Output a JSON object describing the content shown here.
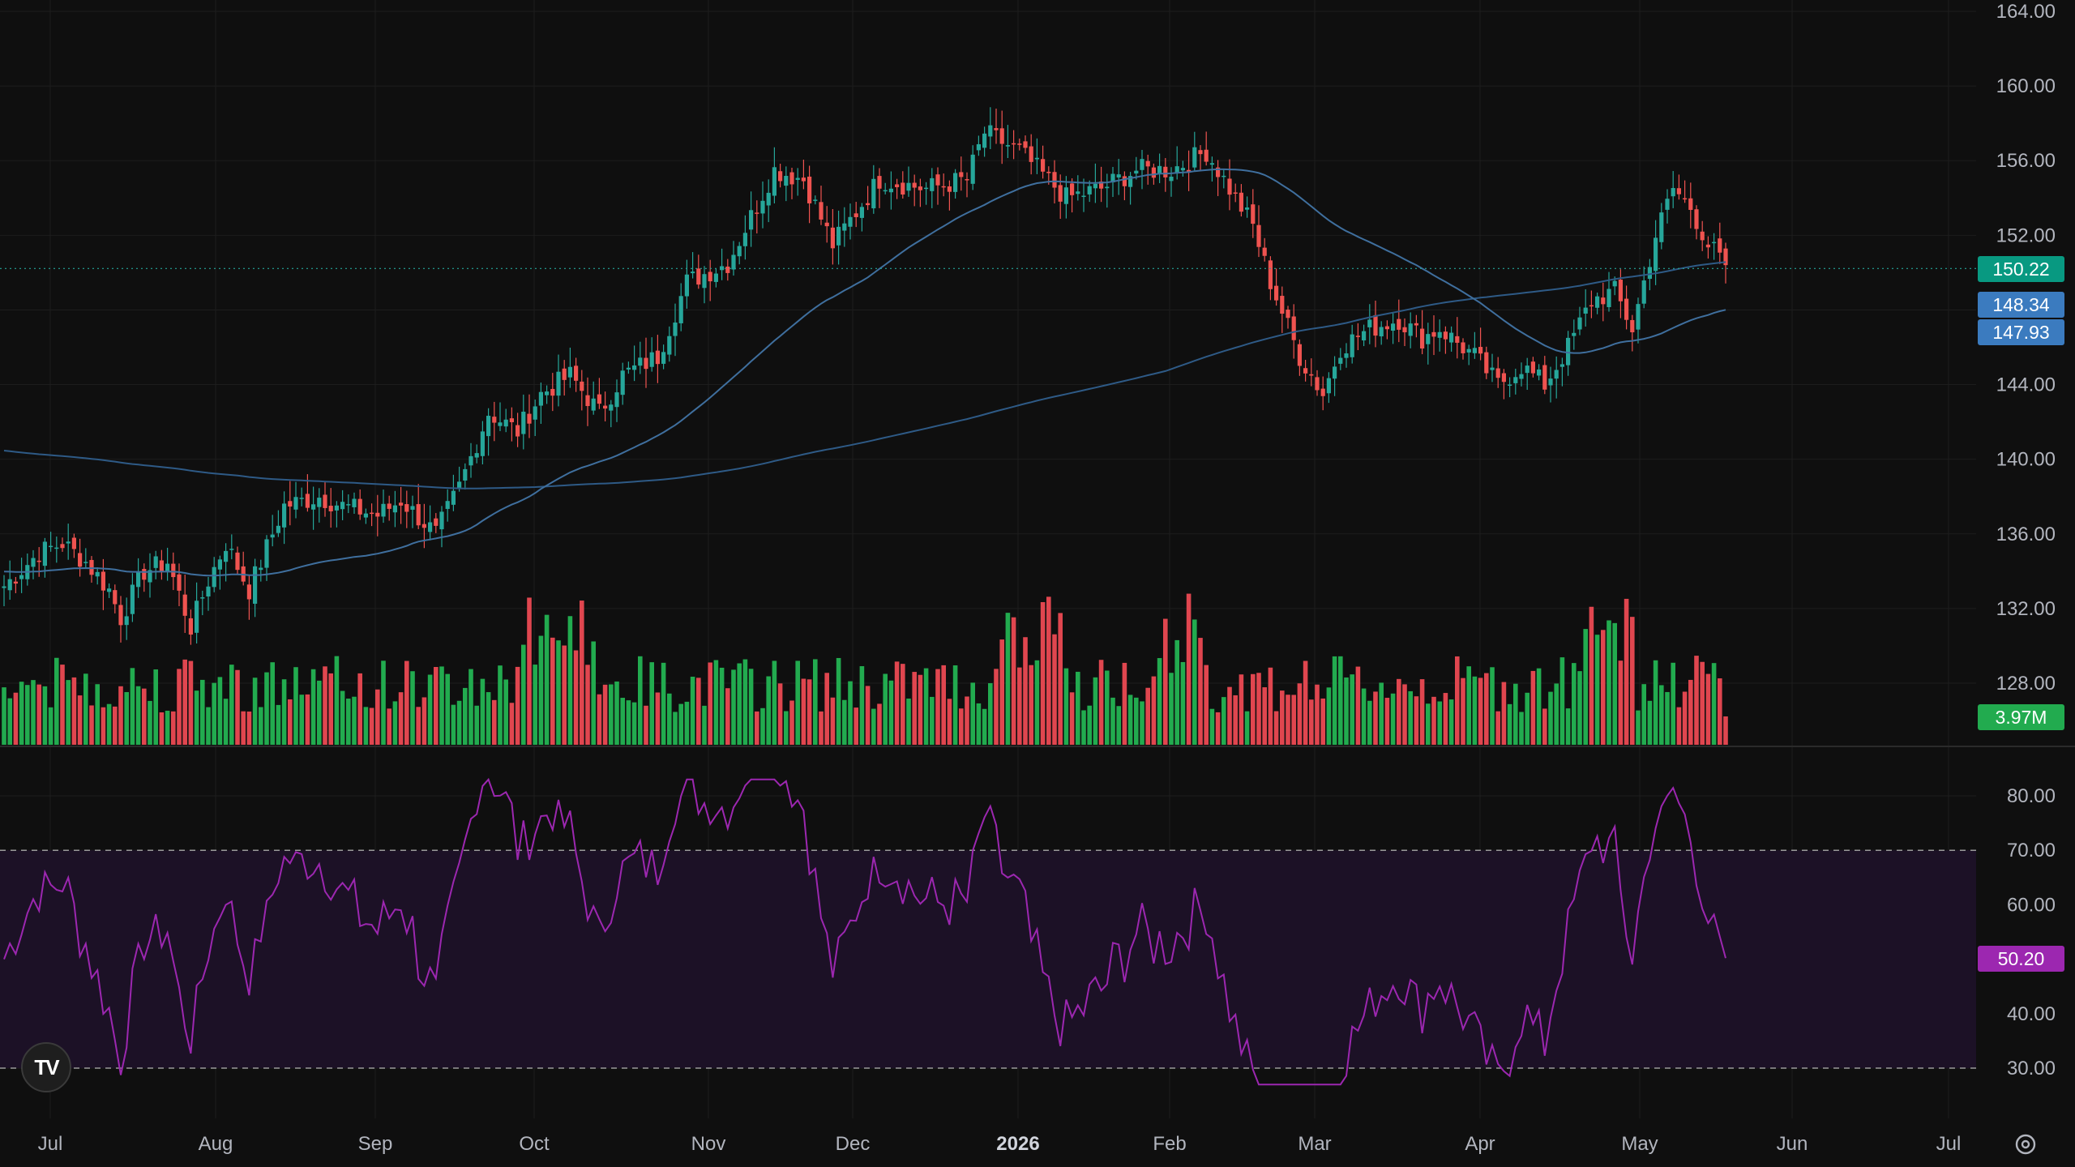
{
  "chart_data": [
    {
      "type": "candlestick",
      "panel": "price",
      "y_ticks": [
        "164.00",
        "160.00",
        "156.00",
        "152.00",
        "148.00",
        "144.00",
        "140.00",
        "136.00",
        "132.00",
        "128.00"
      ],
      "ylim": [
        125.5,
        164
      ],
      "x_ticks": [
        "Jul",
        "Aug",
        "Sep",
        "Oct",
        "Nov",
        "Dec",
        "2026",
        "Feb",
        "Mar",
        "Apr",
        "May",
        "Jun",
        "Jul"
      ],
      "bars_count": 239,
      "last_price": "150.22",
      "ma_values": [
        "148.34",
        "147.93"
      ],
      "anchors": [
        [
          0,
          133.2
        ],
        [
          6,
          135.0
        ],
        [
          10,
          135.5
        ],
        [
          14,
          134.5
        ],
        [
          18,
          133.0
        ],
        [
          20,
          131.5
        ],
        [
          24,
          134.0
        ],
        [
          28,
          134.5
        ],
        [
          32,
          131.0
        ],
        [
          35,
          133.5
        ],
        [
          38,
          135.5
        ],
        [
          42,
          133.0
        ],
        [
          48,
          137.5
        ],
        [
          54,
          138.0
        ],
        [
          58,
          137.5
        ],
        [
          64,
          137.0
        ],
        [
          68,
          137.8
        ],
        [
          74,
          136.0
        ],
        [
          78,
          138.5
        ],
        [
          83,
          142.5
        ],
        [
          88,
          141.5
        ],
        [
          92,
          143.5
        ],
        [
          97,
          144.5
        ],
        [
          102,
          142.5
        ],
        [
          106,
          144.5
        ],
        [
          112,
          145.5
        ],
        [
          117,
          149.5
        ],
        [
          124,
          150.5
        ],
        [
          132,
          155.5
        ],
        [
          137,
          155.0
        ],
        [
          142,
          151.5
        ],
        [
          150,
          155.0
        ],
        [
          158,
          154.5
        ],
        [
          165,
          155.0
        ],
        [
          168,
          157.5
        ],
        [
          174,
          156.5
        ],
        [
          182,
          154.0
        ],
        [
          188,
          154.5
        ],
        [
          194,
          155.5
        ],
        [
          200,
          155.5
        ],
        [
          206,
          156.5
        ],
        [
          211,
          154.0
        ],
        [
          214,
          152.5
        ],
        [
          217,
          149.5
        ],
        [
          222,
          145.5
        ],
        [
          226,
          143.5
        ],
        [
          229,
          146.0
        ],
        [
          234,
          147.0
        ],
        [
          239,
          147.5
        ],
        [
          243,
          146.5
        ],
        [
          246,
          147.0
        ],
        [
          252,
          145.5
        ],
        [
          256,
          144.0
        ],
        [
          260,
          145.0
        ],
        [
          264,
          144.0
        ],
        [
          268,
          146.0
        ],
        [
          272,
          148.5
        ],
        [
          276,
          149.0
        ],
        [
          279,
          147.0
        ],
        [
          283,
          152.0
        ],
        [
          286,
          154.5
        ],
        [
          289,
          153.5
        ],
        [
          292,
          151.5
        ],
        [
          295,
          150.4
        ]
      ],
      "volume_axis_label": "3.97M"
    },
    {
      "type": "line",
      "panel": "rsi",
      "y_ticks": [
        "80.00",
        "70.00",
        "60.00",
        "50.00",
        "40.00",
        "30.00"
      ],
      "ylim": [
        26,
        84
      ],
      "upper_band": 70,
      "lower_band": 30,
      "last_value": "50.20"
    }
  ],
  "labels": {
    "last_price": "150.22",
    "ma1": "148.34",
    "ma2": "147.93",
    "volume": "3.97M",
    "rsi": "50.20",
    "logo": "TV"
  },
  "colors": {
    "up": "#26a69a",
    "down": "#ef5350",
    "vol_up": "#22ab4f",
    "vol_down": "#e0464f",
    "ma": "#2e5a86",
    "rsi_line": "#9c27b0",
    "rsi_band": "#1c1126",
    "last_price_badge": "#089981",
    "ma_badge": "#3b7bbf",
    "volume_badge": "#22ab4f",
    "rsi_badge": "#9c27b0"
  }
}
